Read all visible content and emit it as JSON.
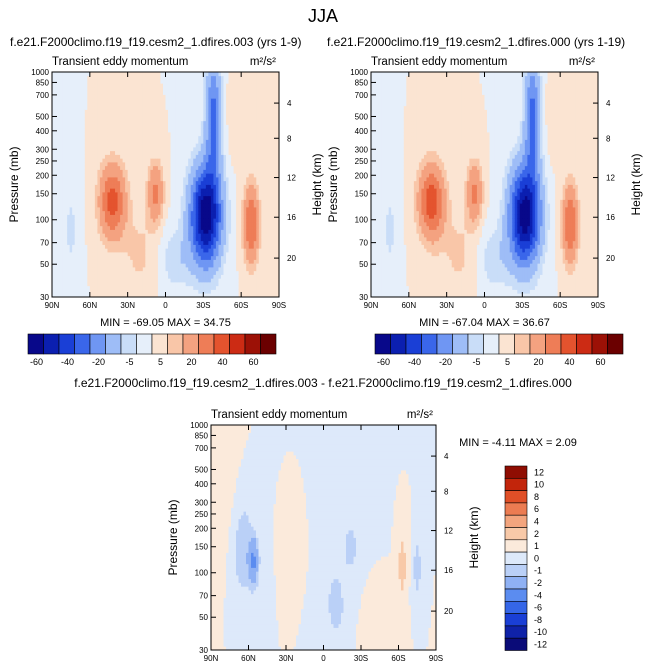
{
  "figure_title": "JJA",
  "colorbar_levels_main": [
    "-60",
    "-40",
    "-20",
    "-5",
    "5",
    "20",
    "40",
    "60"
  ],
  "colorbar_levels_diff": [
    "12",
    "10",
    "8",
    "6",
    "4",
    "2",
    "1",
    "0",
    "-1",
    "-2",
    "-4",
    "-6",
    "-8",
    "-10",
    "-12"
  ],
  "chart_data": [
    {
      "type": "heatmap",
      "title": "f.e21.F2000climo.f19_f19.cesm2_1.dfires.003 (yrs 1-9)",
      "subtitle": "Transient eddy momentum",
      "units": "m²/s²",
      "xlabel": "",
      "ylabel": "Pressure (mb)",
      "ylabel_right": "Height (km)",
      "x_ticks": [
        "90N",
        "60N",
        "30N",
        "0",
        "30S",
        "60S",
        "90S"
      ],
      "x_range": [
        90,
        -90
      ],
      "y_ticks": [
        "30",
        "50",
        "70",
        "100",
        "150",
        "200",
        "250",
        "300",
        "400",
        "500",
        "700",
        "850",
        "1000"
      ],
      "y_range": [
        1000,
        30
      ],
      "height_ticks": [
        "4",
        "8",
        "12",
        "16",
        "20"
      ],
      "stats": "MIN = -69.05   MAX = 34.75",
      "min": -69.05,
      "max": 34.75,
      "features": [
        {
          "lat": 42,
          "p": 220,
          "value": 34.75,
          "sign": "positive"
        },
        {
          "lat": 8,
          "p": 200,
          "value": 20,
          "sign": "positive"
        },
        {
          "lat": -32,
          "p": 275,
          "value": -69.05,
          "sign": "negative"
        },
        {
          "lat": -68,
          "p": 300,
          "value": 30,
          "sign": "positive"
        }
      ]
    },
    {
      "type": "heatmap",
      "title": "f.e21.F2000climo.f19_f19.cesm2_1.dfires.000 (yrs 1-19)",
      "subtitle": "Transient eddy momentum",
      "units": "m²/s²",
      "xlabel": "",
      "ylabel": "Pressure (mb)",
      "ylabel_right": "Height (km)",
      "x_ticks": [
        "90N",
        "60N",
        "30N",
        "0",
        "30S",
        "60S",
        "90S"
      ],
      "x_range": [
        90,
        -90
      ],
      "y_ticks": [
        "30",
        "50",
        "70",
        "100",
        "150",
        "200",
        "250",
        "300",
        "400",
        "500",
        "700",
        "850",
        "1000"
      ],
      "y_range": [
        1000,
        30
      ],
      "height_ticks": [
        "4",
        "8",
        "12",
        "16",
        "20"
      ],
      "stats": "MIN = -67.04   MAX = 36.67",
      "min": -67.04,
      "max": 36.67,
      "features": [
        {
          "lat": 42,
          "p": 220,
          "value": 36.67,
          "sign": "positive"
        },
        {
          "lat": 8,
          "p": 200,
          "value": 20,
          "sign": "positive"
        },
        {
          "lat": -32,
          "p": 275,
          "value": -67.04,
          "sign": "negative"
        },
        {
          "lat": -68,
          "p": 300,
          "value": 30,
          "sign": "positive"
        }
      ]
    },
    {
      "type": "heatmap",
      "title": "f.e21.F2000climo.f19_f19.cesm2_1.dfires.003 - f.e21.F2000climo.f19_f19.cesm2_1.dfires.000",
      "subtitle": "Transient eddy momentum",
      "units": "m²/s²",
      "xlabel": "",
      "ylabel": "Pressure (mb)",
      "ylabel_right": "Height (km)",
      "x_ticks": [
        "90N",
        "60N",
        "30N",
        "0",
        "30S",
        "60S",
        "90S"
      ],
      "x_range": [
        90,
        -90
      ],
      "y_ticks": [
        "30",
        "50",
        "70",
        "100",
        "150",
        "200",
        "250",
        "300",
        "400",
        "500",
        "700",
        "850",
        "1000"
      ],
      "y_range": [
        1000,
        30
      ],
      "height_ticks": [
        "4",
        "8",
        "12",
        "16",
        "20"
      ],
      "stats": "MIN = -4.11   MAX =  2.09",
      "min": -4.11,
      "max": 2.09,
      "features": [
        {
          "lat": 55,
          "p": 250,
          "value": -4.11,
          "sign": "negative"
        },
        {
          "lat": -25,
          "p": 200,
          "value": -2,
          "sign": "negative"
        },
        {
          "lat": -65,
          "p": 270,
          "value": 2.09,
          "sign": "positive"
        },
        {
          "lat": -75,
          "p": 300,
          "value": -2,
          "sign": "negative"
        }
      ]
    }
  ],
  "colors": {
    "main": [
      "#08088a",
      "#0b1fb0",
      "#1a3fd6",
      "#3a66ea",
      "#6f96f3",
      "#9ebdf7",
      "#c9ddf8",
      "#e6effa",
      "#fbe4d2",
      "#f9c6a8",
      "#f4a280",
      "#ee7d57",
      "#e4532e",
      "#cc2b14",
      "#9c1106",
      "#6b0000"
    ],
    "diff": [
      "#0a0b78",
      "#0f22a8",
      "#1a3fd6",
      "#3566e8",
      "#5b8cf0",
      "#8fb1f4",
      "#bad0f7",
      "#dde9fa",
      "#fbeadb",
      "#f8c9a8",
      "#f3a57e",
      "#ec7c52",
      "#e04f27",
      "#c2250b",
      "#8f0d02"
    ]
  }
}
